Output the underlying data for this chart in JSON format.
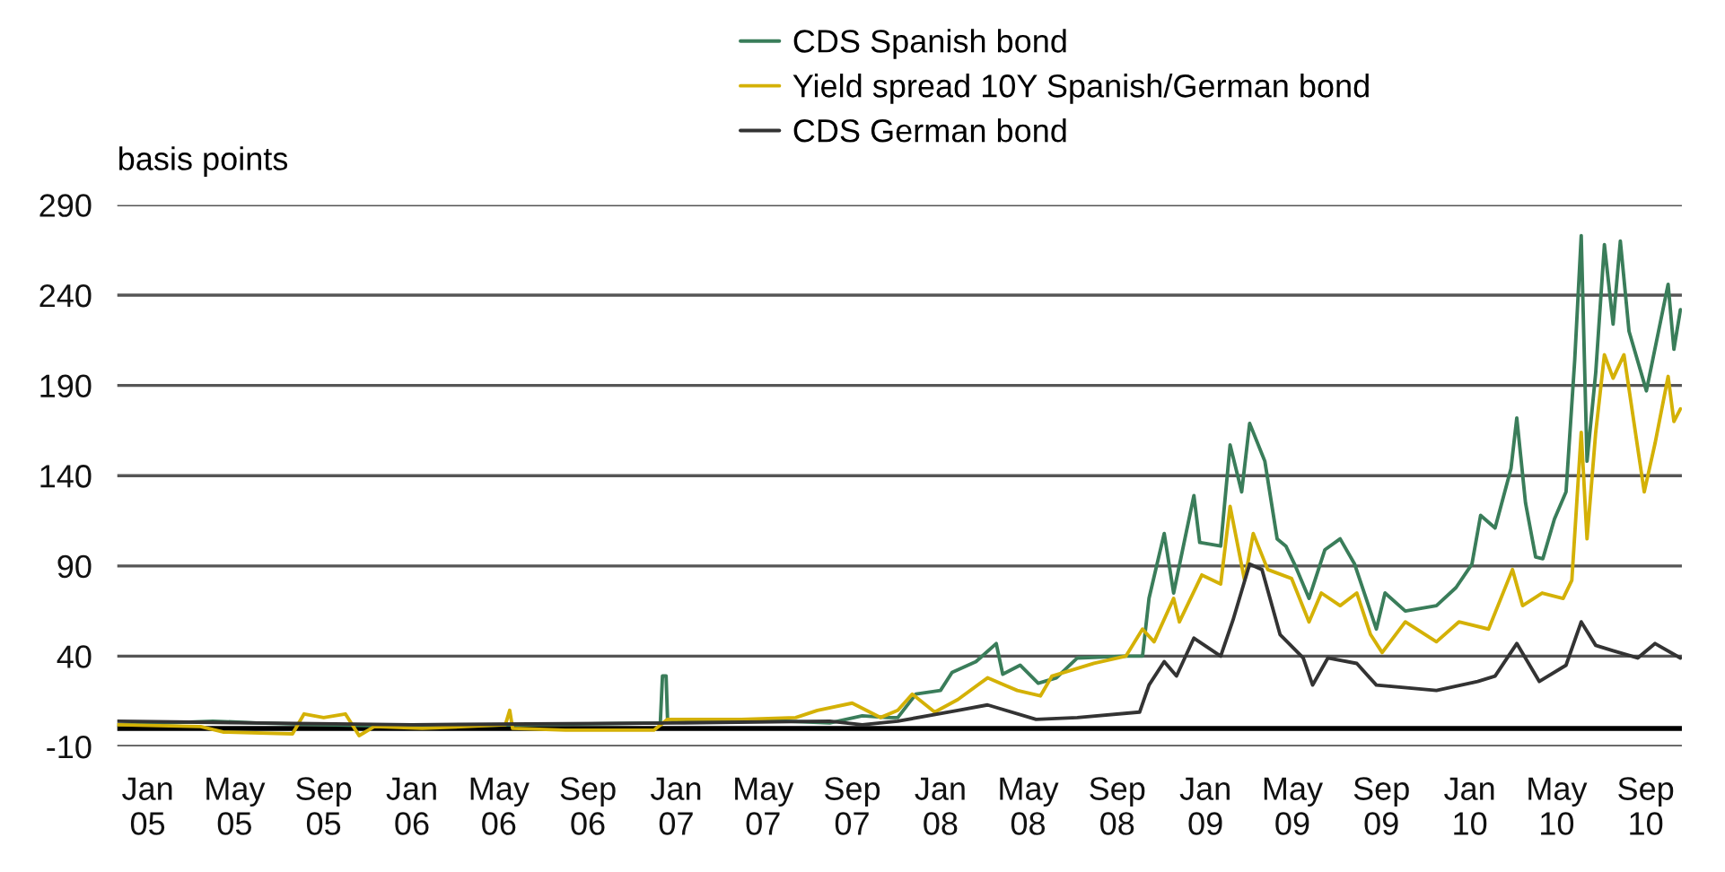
{
  "chart_data": {
    "type": "line",
    "ylabel": "basis points",
    "legend": "top",
    "grid": "y",
    "line_style": "solid",
    "marker": "none",
    "xlim": [
      "2004-11-20",
      "2010-10-21"
    ],
    "ylim": [
      -10,
      290
    ],
    "yticks": [
      -10,
      40,
      90,
      140,
      190,
      240,
      290
    ],
    "xticks": [
      {
        "value": "2005-01-01",
        "label": "Jan\n05"
      },
      {
        "value": "2005-05-01",
        "label": "May\n05"
      },
      {
        "value": "2005-09-01",
        "label": "Sep\n05"
      },
      {
        "value": "2006-01-01",
        "label": "Jan\n06"
      },
      {
        "value": "2006-05-01",
        "label": "May\n06"
      },
      {
        "value": "2006-09-01",
        "label": "Sep\n06"
      },
      {
        "value": "2007-01-01",
        "label": "Jan\n07"
      },
      {
        "value": "2007-05-01",
        "label": "May\n07"
      },
      {
        "value": "2007-09-01",
        "label": "Sep\n07"
      },
      {
        "value": "2008-01-01",
        "label": "Jan\n08"
      },
      {
        "value": "2008-05-01",
        "label": "May\n08"
      },
      {
        "value": "2008-09-01",
        "label": "Sep\n08"
      },
      {
        "value": "2009-01-01",
        "label": "Jan\n09"
      },
      {
        "value": "2009-05-01",
        "label": "May\n09"
      },
      {
        "value": "2009-09-01",
        "label": "Sep\n09"
      },
      {
        "value": "2010-01-01",
        "label": "Jan\n10"
      },
      {
        "value": "2010-05-01",
        "label": "May\n10"
      },
      {
        "value": "2010-09-01",
        "label": "Sep\n10"
      }
    ],
    "ref_lines": [
      {
        "axis": "y",
        "value": 0,
        "color": "#000000"
      }
    ],
    "series": [
      {
        "name": "CDS Spanish bond",
        "color": "#3a7d5a",
        "x": [
          "2004-11-20",
          "2005-04-01",
          "2005-06-01",
          "2005-09-01",
          "2006-01-01",
          "2006-06-01",
          "2006-12-10",
          "2006-12-13",
          "2006-12-18",
          "2006-12-20",
          "2007-03-01",
          "2007-06-01",
          "2007-08-01",
          "2007-09-15",
          "2007-10-20",
          "2007-11-03",
          "2007-11-28",
          "2008-01-01",
          "2008-01-17",
          "2008-02-19",
          "2008-03-18",
          "2008-03-27",
          "2008-04-20",
          "2008-05-15",
          "2008-06-09",
          "2008-07-08",
          "2008-09-13",
          "2008-10-06",
          "2008-10-15",
          "2008-11-05",
          "2008-11-18",
          "2008-12-16",
          "2008-12-24",
          "2009-01-22",
          "2009-02-04",
          "2009-02-20",
          "2009-03-03",
          "2009-03-24",
          "2009-04-10",
          "2009-04-22",
          "2009-05-04",
          "2009-05-24",
          "2009-06-15",
          "2009-07-06",
          "2009-07-26",
          "2009-08-25",
          "2009-09-06",
          "2009-10-04",
          "2009-11-16",
          "2009-12-13",
          "2010-01-04",
          "2010-01-16",
          "2010-02-05",
          "2010-02-27",
          "2010-03-07",
          "2010-03-19",
          "2010-04-02",
          "2010-04-12",
          "2010-04-28",
          "2010-05-14",
          "2010-05-26",
          "2010-06-04",
          "2010-06-12",
          "2010-06-24",
          "2010-07-06",
          "2010-07-18",
          "2010-07-28",
          "2010-08-09",
          "2010-09-02",
          "2010-10-02",
          "2010-10-10",
          "2010-10-19"
        ],
        "values": [
          2,
          4,
          3,
          2,
          1,
          2,
          3,
          29,
          29,
          5,
          4,
          4,
          3,
          7,
          6,
          6,
          19,
          21,
          31,
          37,
          47,
          30,
          35,
          25,
          28,
          39,
          40,
          40,
          72,
          108,
          75,
          129,
          103,
          101,
          157,
          131,
          169,
          148,
          105,
          101,
          91,
          72,
          99,
          105,
          91,
          55,
          75,
          65,
          68,
          78,
          91,
          118,
          111,
          144,
          172,
          125,
          95,
          94,
          116,
          131,
          204,
          273,
          148,
          197,
          268,
          224,
          270,
          220,
          187,
          246,
          210,
          232
        ]
      },
      {
        "name": "Yield spread 10Y Spanish/German bond",
        "color": "#d4b106",
        "x": [
          "2004-11-20",
          "2005-03-15",
          "2005-04-15",
          "2005-07-20",
          "2005-08-05",
          "2005-09-01",
          "2005-10-01",
          "2005-10-20",
          "2005-11-10",
          "2006-01-15",
          "2006-05-10",
          "2006-05-16",
          "2006-05-20",
          "2006-08-01",
          "2006-12-01",
          "2006-12-20",
          "2007-04-01",
          "2007-06-15",
          "2007-07-15",
          "2007-09-01",
          "2007-10-10",
          "2007-11-03",
          "2007-11-23",
          "2007-12-24",
          "2008-01-25",
          "2008-03-06",
          "2008-04-16",
          "2008-05-18",
          "2008-06-03",
          "2008-07-31",
          "2008-09-13",
          "2008-10-06",
          "2008-10-22",
          "2008-11-18",
          "2008-11-26",
          "2008-12-27",
          "2009-01-22",
          "2009-02-04",
          "2009-02-24",
          "2009-03-08",
          "2009-03-28",
          "2009-04-30",
          "2009-05-24",
          "2009-06-10",
          "2009-07-06",
          "2009-07-29",
          "2009-08-17",
          "2009-09-02",
          "2009-10-04",
          "2009-11-16",
          "2009-12-17",
          "2010-01-27",
          "2010-03-01",
          "2010-03-15",
          "2010-04-11",
          "2010-05-10",
          "2010-05-22",
          "2010-06-04",
          "2010-06-12",
          "2010-06-24",
          "2010-07-06",
          "2010-07-18",
          "2010-08-02",
          "2010-08-30",
          "2010-09-14",
          "2010-10-02",
          "2010-10-10",
          "2010-10-19"
        ],
        "values": [
          2,
          1,
          -2,
          -3,
          8,
          6,
          8,
          -4,
          1,
          0,
          2,
          10,
          0,
          -1,
          -1,
          5,
          5,
          6,
          10,
          14,
          6,
          10,
          19,
          9,
          16,
          28,
          21,
          18,
          29,
          36,
          40,
          55,
          48,
          72,
          59,
          85,
          80,
          123,
          82,
          108,
          88,
          83,
          59,
          75,
          68,
          75,
          52,
          42,
          59,
          48,
          59,
          55,
          88,
          68,
          75,
          72,
          82,
          164,
          105,
          164,
          207,
          194,
          207,
          131,
          158,
          195,
          170,
          177
        ]
      },
      {
        "name": "CDS German bond",
        "color": "#333333",
        "x": [
          "2004-11-20",
          "2005-06-01",
          "2006-01-01",
          "2007-01-01",
          "2007-08-01",
          "2007-09-15",
          "2007-11-03",
          "2008-01-25",
          "2008-03-06",
          "2008-05-12",
          "2008-07-08",
          "2008-10-02",
          "2008-10-15",
          "2008-11-05",
          "2008-11-22",
          "2008-12-16",
          "2009-01-22",
          "2009-02-08",
          "2009-03-03",
          "2009-03-20",
          "2009-04-14",
          "2009-05-16",
          "2009-05-29",
          "2009-06-19",
          "2009-07-29",
          "2009-08-25",
          "2009-11-16",
          "2010-01-12",
          "2010-02-05",
          "2010-03-07",
          "2010-04-07",
          "2010-05-14",
          "2010-06-04",
          "2010-06-24",
          "2010-07-18",
          "2010-08-21",
          "2010-09-14",
          "2010-10-19"
        ],
        "values": [
          4,
          3,
          2,
          3,
          4,
          2,
          4,
          10,
          13,
          5,
          6,
          9,
          24,
          37,
          29,
          50,
          40,
          60,
          91,
          88,
          52,
          39,
          24,
          39,
          36,
          24,
          21,
          26,
          29,
          47,
          26,
          35,
          59,
          46,
          43,
          39,
          47,
          39
        ]
      }
    ]
  }
}
